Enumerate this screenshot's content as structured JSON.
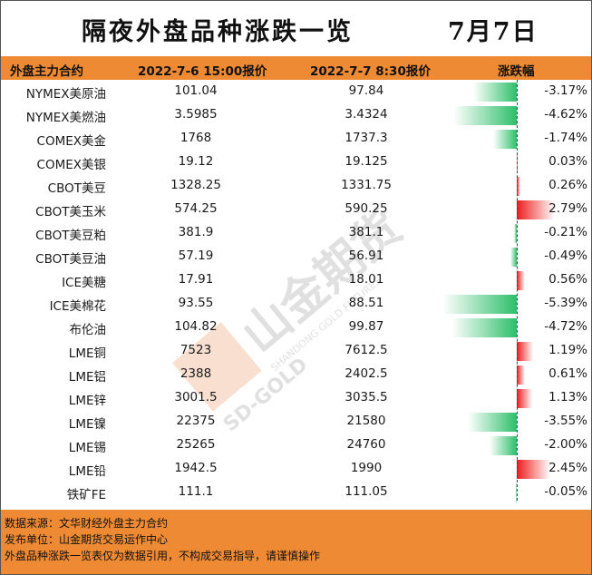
{
  "title": "隔夜外盘品种涨跌一览",
  "date": "7月7日",
  "header": {
    "col1": "外盘主力合约",
    "col2": "2022-7-6 15:00报价",
    "col3": "2022-7-7 8:30报价",
    "col4": "涨跌幅"
  },
  "colors": {
    "up": "#ee1c1c",
    "down": "#2dbf6a",
    "header": "#ee8a33"
  },
  "watermark": {
    "brand": "山金期货",
    "latin": "SHANDONG GOLD FUTURES",
    "logo": "SD-GOLD"
  },
  "chart_data": {
    "type": "table",
    "columns": [
      "外盘主力合约",
      "2022-7-6 15:00报价",
      "2022-7-7 8:30报价",
      "涨跌幅"
    ],
    "rows": [
      {
        "name": "NYMEX美原油",
        "prev": "101.04",
        "curr": "97.84",
        "pct_text": "-3.17%",
        "pct": -3.17
      },
      {
        "name": "NYMEX美燃油",
        "prev": "3.5985",
        "curr": "3.4324",
        "pct_text": "-4.62%",
        "pct": -4.62
      },
      {
        "name": "COMEX美金",
        "prev": "1768",
        "curr": "1737.3",
        "pct_text": "-1.74%",
        "pct": -1.74
      },
      {
        "name": "COMEX美银",
        "prev": "19.12",
        "curr": "19.125",
        "pct_text": "0.03%",
        "pct": 0.03
      },
      {
        "name": "CBOT美豆",
        "prev": "1328.25",
        "curr": "1331.75",
        "pct_text": "0.26%",
        "pct": 0.26
      },
      {
        "name": "CBOT美玉米",
        "prev": "574.25",
        "curr": "590.25",
        "pct_text": "2.79%",
        "pct": 2.79
      },
      {
        "name": "CBOT美豆粕",
        "prev": "381.9",
        "curr": "381.1",
        "pct_text": "-0.21%",
        "pct": -0.21
      },
      {
        "name": "CBOT美豆油",
        "prev": "57.19",
        "curr": "56.91",
        "pct_text": "-0.49%",
        "pct": -0.49
      },
      {
        "name": "ICE美糖",
        "prev": "17.91",
        "curr": "18.01",
        "pct_text": "0.56%",
        "pct": 0.56
      },
      {
        "name": "ICE美棉花",
        "prev": "93.55",
        "curr": "88.51",
        "pct_text": "-5.39%",
        "pct": -5.39
      },
      {
        "name": "布伦油",
        "prev": "104.82",
        "curr": "99.87",
        "pct_text": "-4.72%",
        "pct": -4.72
      },
      {
        "name": "LME铜",
        "prev": "7523",
        "curr": "7612.5",
        "pct_text": "1.19%",
        "pct": 1.19
      },
      {
        "name": "LME铝",
        "prev": "2388",
        "curr": "2402.5",
        "pct_text": "0.61%",
        "pct": 0.61
      },
      {
        "name": "LME锌",
        "prev": "3001.5",
        "curr": "3035.5",
        "pct_text": "1.13%",
        "pct": 1.13
      },
      {
        "name": "LME镍",
        "prev": "22375",
        "curr": "21580",
        "pct_text": "-3.55%",
        "pct": -3.55
      },
      {
        "name": "LME锡",
        "prev": "25265",
        "curr": "24760",
        "pct_text": "-2.00%",
        "pct": -2.0
      },
      {
        "name": "LME铅",
        "prev": "1942.5",
        "curr": "1990",
        "pct_text": "2.45%",
        "pct": 2.45
      },
      {
        "name": "铁矿FE",
        "prev": "111.1",
        "curr": "111.05",
        "pct_text": "-0.05%",
        "pct": -0.05
      }
    ]
  },
  "footer": {
    "line1": "数据来源：文华财经外盘主力合约",
    "line2": "发布单位：山金期货交易运作中心",
    "line3": "外盘品种涨跌一览表仅为数据引用，不构成交易指导，请谨慎操作"
  }
}
